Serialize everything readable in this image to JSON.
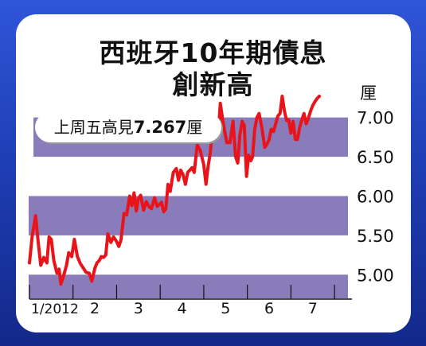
{
  "title_line1": "西班牙10年期債息",
  "title_line2": "創新高",
  "callout": {
    "prefix": "上周五高見",
    "value": "7.267",
    "unit": "厘"
  },
  "colors": {
    "background": "#2246c8",
    "band": "#8a7cba",
    "line": "#e8141a",
    "text": "#111111"
  },
  "chart_data": {
    "type": "line",
    "title": "西班牙10年期債息創新高",
    "ylabel": "厘",
    "y_ticks": [
      "7.00",
      "6.50",
      "6.00",
      "5.50",
      "5.00"
    ],
    "x_labels": [
      {
        "label": "1/2012",
        "x": 0
      },
      {
        "label": "2",
        "x": 1
      },
      {
        "label": "3",
        "x": 2
      },
      {
        "label": "4",
        "x": 3
      },
      {
        "label": "5",
        "x": 4
      },
      {
        "label": "6",
        "x": 5
      },
      {
        "label": "7",
        "x": 6
      }
    ],
    "xlim": [
      0,
      7.4
    ],
    "ylim": [
      4.7,
      7.3
    ],
    "series": [
      {
        "x": [
          0.0,
          0.06,
          0.14,
          0.2,
          0.26,
          0.33,
          0.4,
          0.45,
          0.5,
          0.56,
          0.63,
          0.68,
          0.72,
          0.78,
          0.85,
          0.9,
          0.97,
          1.03,
          1.1,
          1.17,
          1.23,
          1.3,
          1.37,
          1.43,
          1.5,
          1.55,
          1.6,
          1.65,
          1.7,
          1.75,
          1.8,
          1.87,
          1.93,
          2.0,
          2.05,
          2.1,
          2.17,
          2.23,
          2.3,
          2.35,
          2.4,
          2.45,
          2.5,
          2.55,
          2.62,
          2.68,
          2.75,
          2.8,
          2.87,
          2.93,
          3.0,
          3.03,
          3.08,
          3.13,
          3.18,
          3.23,
          3.3,
          3.37,
          3.42,
          3.47,
          3.52,
          3.58,
          3.63,
          3.68,
          3.73,
          3.78,
          3.85,
          3.92,
          4.0,
          4.05,
          4.1,
          4.15,
          4.2,
          4.27,
          4.33,
          4.38,
          4.43,
          4.48,
          4.53,
          4.6,
          4.67,
          4.73,
          4.78,
          4.83,
          4.88,
          4.93,
          4.98,
          5.03,
          5.08,
          5.12,
          5.17,
          5.22,
          5.27,
          5.33,
          5.4,
          5.45,
          5.5,
          5.55,
          5.6,
          5.65,
          5.7,
          5.75,
          5.8,
          5.85,
          5.9,
          5.95,
          6.0,
          6.05,
          6.1,
          6.15,
          6.2,
          6.25,
          6.3,
          6.35,
          6.4,
          6.45,
          6.5,
          6.55,
          6.6,
          6.65
        ],
        "y": [
          5.15,
          5.48,
          5.75,
          5.42,
          5.12,
          5.22,
          5.15,
          5.48,
          5.45,
          5.18,
          5.02,
          5.07,
          4.88,
          4.98,
          5.12,
          5.28,
          5.23,
          5.45,
          5.23,
          5.14,
          5.09,
          5.03,
          5.02,
          4.92,
          5.08,
          5.15,
          5.18,
          5.23,
          5.22,
          5.25,
          5.52,
          5.41,
          5.48,
          5.42,
          5.36,
          5.44,
          5.78,
          5.76,
          6.0,
          5.88,
          6.04,
          5.81,
          5.97,
          6.01,
          5.82,
          5.93,
          5.86,
          5.84,
          5.98,
          5.87,
          5.9,
          5.92,
          5.8,
          5.84,
          6.15,
          6.06,
          6.3,
          6.35,
          6.2,
          6.33,
          6.28,
          6.15,
          6.3,
          6.33,
          6.36,
          6.3,
          6.65,
          6.58,
          6.4,
          6.15,
          6.38,
          6.55,
          6.85,
          6.9,
          6.78,
          7.18,
          6.98,
          6.82,
          6.68,
          6.68,
          6.95,
          6.5,
          6.42,
          6.78,
          6.95,
          6.9,
          6.25,
          6.52,
          6.45,
          6.5,
          6.86,
          7.0,
          7.05,
          6.88,
          6.62,
          6.66,
          6.72,
          6.85,
          6.82,
          6.92,
          7.02,
          7.05,
          7.27,
          7.08,
          6.96,
          6.97,
          6.8,
          6.95,
          6.72,
          6.72,
          6.87,
          6.97,
          7.05,
          6.92,
          6.99,
          7.08,
          7.15,
          7.2,
          7.24,
          7.27
        ]
      }
    ]
  }
}
